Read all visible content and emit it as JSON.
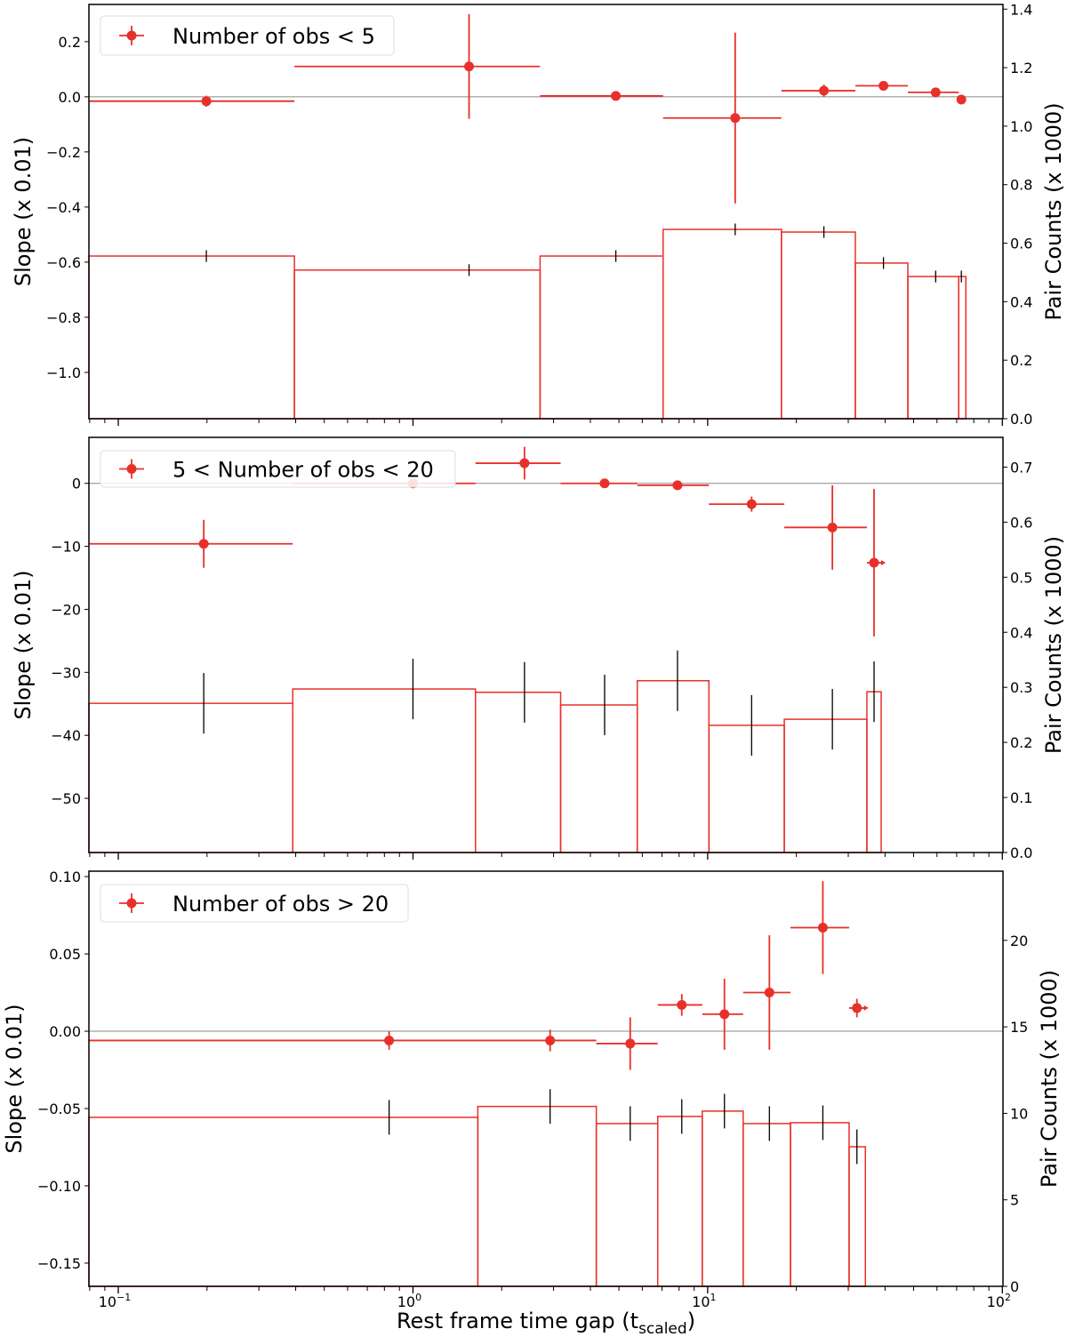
{
  "chart_data": {
    "type": "scatter",
    "xlabel": "Rest frame time gap (t",
    "xlabel_sub": "scaled",
    "xlabel_close": ")",
    "xscale": "log",
    "xlim": [
      0.0795,
      100.5
    ],
    "xticks": [
      {
        "v": 0.1,
        "base": "10",
        "exp": "−1"
      },
      {
        "v": 1,
        "base": "10",
        "exp": "0"
      },
      {
        "v": 10,
        "base": "10",
        "exp": "1"
      },
      {
        "v": 100,
        "base": "10",
        "exp": "2"
      }
    ],
    "colors": {
      "points": "#e8302a",
      "hist": "#e8302a",
      "count_err": "#000000",
      "zero_line": "#888888"
    },
    "panels": [
      {
        "legend": "Number of obs < 5",
        "ylabel_left": "Slope (x 0.01)",
        "ylabel_right": "Pair Counts (x 1000)",
        "ylim_left": [
          -1.168,
          0.335
        ],
        "ylim_right": [
          0,
          1.416
        ],
        "yticks_left": [
          {
            "v": 0.2,
            "t": "0.2"
          },
          {
            "v": 0,
            "t": "0.0"
          },
          {
            "v": -0.2,
            "t": "−0.2"
          },
          {
            "v": -0.4,
            "t": "−0.4"
          },
          {
            "v": -0.6,
            "t": "−0.6"
          },
          {
            "v": -0.8,
            "t": "−0.8"
          },
          {
            "v": -1.0,
            "t": "−1.0"
          }
        ],
        "yticks_right": [
          {
            "v": 0,
            "t": "0.0"
          },
          {
            "v": 0.2,
            "t": "0.2"
          },
          {
            "v": 0.4,
            "t": "0.4"
          },
          {
            "v": 0.6,
            "t": "0.6"
          },
          {
            "v": 0.8,
            "t": "0.8"
          },
          {
            "v": 1.0,
            "t": "1.0"
          },
          {
            "v": 1.2,
            "t": "1.2"
          },
          {
            "v": 1.4,
            "t": "1.4"
          }
        ],
        "bin_edges": [
          0.0795,
          0.396,
          2.7,
          7.06,
          17.8,
          31.7,
          47.8,
          71.1,
          75.2
        ],
        "points": [
          {
            "x": 0.199,
            "y": -0.016,
            "yerr": 0.02
          },
          {
            "x": 1.55,
            "y": 0.11,
            "yerr": 0.19
          },
          {
            "x": 4.88,
            "y": 0.003,
            "yerr": 0.0
          },
          {
            "x": 12.4,
            "y": -0.077,
            "yerr": 0.31
          },
          {
            "x": 24.8,
            "y": 0.022,
            "yerr": 0.022
          },
          {
            "x": 39.5,
            "y": 0.04,
            "yerr": 0.015
          },
          {
            "x": 59.4,
            "y": 0.016,
            "yerr": 0.013
          },
          {
            "x": 72.6,
            "y": -0.01,
            "yerr": 0.012
          }
        ],
        "counts": [
          0.556,
          0.508,
          0.556,
          0.647,
          0.638,
          0.532,
          0.486,
          0.486
        ],
        "count_err": 0.02
      },
      {
        "legend": "5 < Number of obs < 20",
        "ylabel_left": "Slope (x 0.01)",
        "ylabel_right": "Pair Counts (x 1000)",
        "ylim_left": [
          -58.6,
          7.3
        ],
        "ylim_right": [
          0,
          0.754
        ],
        "yticks_left": [
          {
            "v": 0,
            "t": "0"
          },
          {
            "v": -10,
            "t": "−10"
          },
          {
            "v": -20,
            "t": "−20"
          },
          {
            "v": -30,
            "t": "−30"
          },
          {
            "v": -40,
            "t": "−40"
          },
          {
            "v": -50,
            "t": "−50"
          }
        ],
        "yticks_right": [
          {
            "v": 0,
            "t": "0.0"
          },
          {
            "v": 0.1,
            "t": "0.1"
          },
          {
            "v": 0.2,
            "t": "0.2"
          },
          {
            "v": 0.3,
            "t": "0.3"
          },
          {
            "v": 0.4,
            "t": "0.4"
          },
          {
            "v": 0.5,
            "t": "0.5"
          },
          {
            "v": 0.6,
            "t": "0.6"
          },
          {
            "v": 0.7,
            "t": "0.7"
          }
        ],
        "bin_edges": [
          0.0795,
          0.391,
          1.63,
          3.17,
          5.77,
          10.1,
          18.2,
          34.7,
          38.8
        ],
        "points": [
          {
            "x": 0.195,
            "y": -9.6,
            "yerr": 3.8
          },
          {
            "x": 1.0,
            "y": 0,
            "yerr": 0
          },
          {
            "x": 2.39,
            "y": 3.2,
            "yerr": 2.6
          },
          {
            "x": 4.47,
            "y": 0,
            "yerr": 0
          },
          {
            "x": 7.9,
            "y": -0.3,
            "yerr": 0
          },
          {
            "x": 14.1,
            "y": -3.3,
            "yerr": 1.2
          },
          {
            "x": 26.5,
            "y": -7.0,
            "yerr": 6.7
          },
          {
            "x": 36.7,
            "y": -12.6,
            "yerr": 11.7,
            "arrow": true
          }
        ],
        "counts": [
          0.271,
          0.297,
          0.291,
          0.268,
          0.312,
          0.231,
          0.242,
          0.292
        ],
        "count_err": 0.055
      },
      {
        "legend": "Number of obs > 20",
        "ylabel_left": "Slope (x 0.01)",
        "ylabel_right": "Pair Counts (x 1000)",
        "ylim_left": [
          -0.165,
          0.1035
        ],
        "ylim_right": [
          0,
          24.0
        ],
        "yticks_left": [
          {
            "v": 0.1,
            "t": "0.10"
          },
          {
            "v": 0.05,
            "t": "0.05"
          },
          {
            "v": 0,
            "t": "0.00"
          },
          {
            "v": -0.05,
            "t": "−0.05"
          },
          {
            "v": -0.1,
            "t": "−0.10"
          },
          {
            "v": -0.15,
            "t": "−0.15"
          }
        ],
        "yticks_right": [
          {
            "v": 0,
            "t": "0"
          },
          {
            "v": 5,
            "t": "5"
          },
          {
            "v": 10,
            "t": "10"
          },
          {
            "v": 15,
            "t": "15"
          },
          {
            "v": 20,
            "t": "20"
          }
        ],
        "bin_edges": [
          0.0795,
          1.66,
          4.19,
          6.77,
          9.59,
          13.2,
          19.1,
          30.2,
          34.3
        ],
        "points": [
          {
            "x": 0.83,
            "y": -0.006,
            "yerr": 0.006
          },
          {
            "x": 2.92,
            "y": -0.006,
            "yerr": 0.007
          },
          {
            "x": 5.46,
            "y": -0.008,
            "yerr": 0.017
          },
          {
            "x": 8.17,
            "y": 0.017,
            "yerr": 0.007
          },
          {
            "x": 11.4,
            "y": 0.011,
            "yerr": 0.023
          },
          {
            "x": 16.2,
            "y": 0.025,
            "yerr": 0.037
          },
          {
            "x": 24.6,
            "y": 0.067,
            "yerr": 0.03
          },
          {
            "x": 32.1,
            "y": 0.015,
            "yerr": 0.006,
            "arrow": true
          }
        ],
        "counts": [
          9.77,
          10.4,
          9.41,
          9.82,
          10.13,
          9.41,
          9.46,
          8.07
        ],
        "count_err": 1.0
      }
    ]
  }
}
